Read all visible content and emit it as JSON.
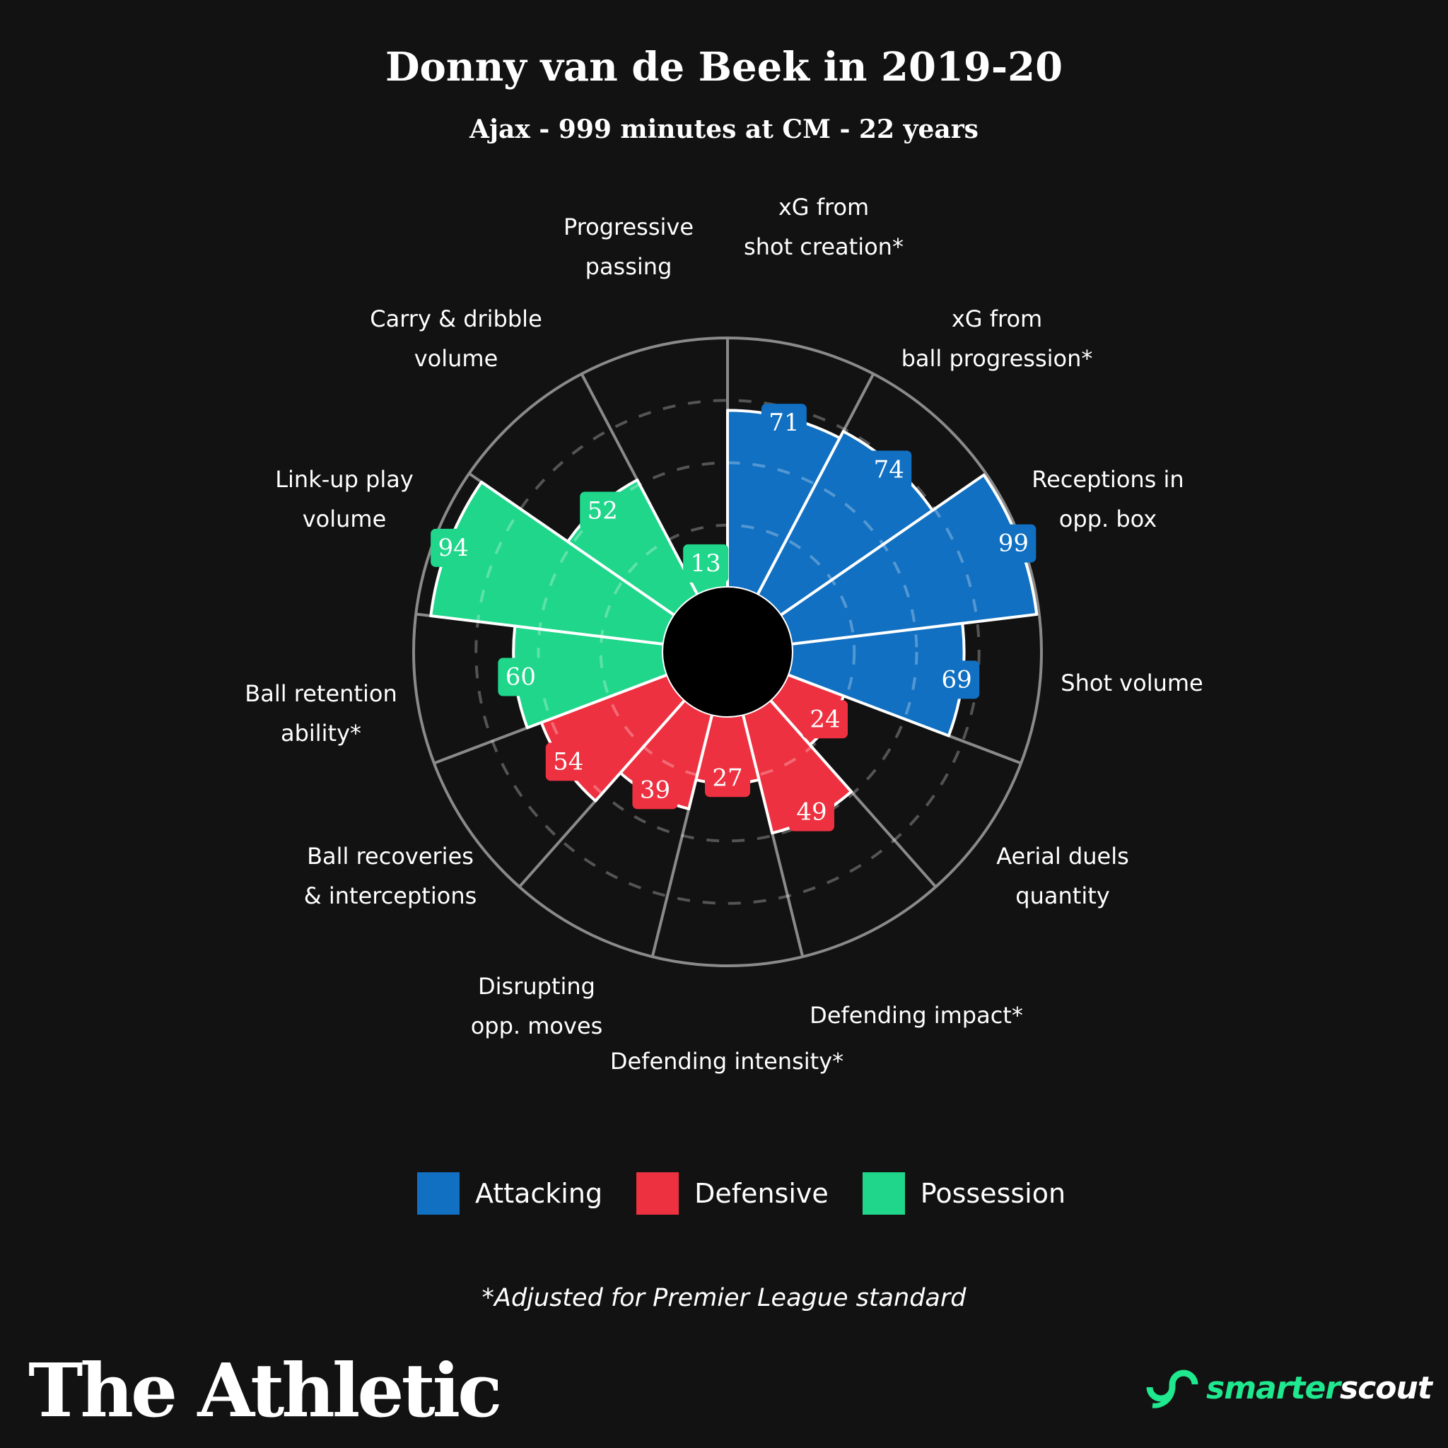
{
  "title": "Donny van de Beek in 2019-20",
  "subtitle": "Ajax - 999 minutes at CM - 22 years",
  "footnote": "*Adjusted for Premier League standard",
  "brand": {
    "publisher": "The Athletic",
    "partner_part1": "smarter",
    "partner_part2": "scout"
  },
  "colors": {
    "background": "#121212",
    "Attacking": "#1170c2",
    "Defensive": "#ee3140",
    "Possession": "#1fd68b"
  },
  "chart_data": {
    "type": "polar-bar",
    "title": "Donny van de Beek in 2019-20",
    "rlim": [
      0,
      100
    ],
    "grid_rings": [
      25,
      50,
      75,
      100
    ],
    "legend": [
      "Attacking",
      "Defensive",
      "Possession"
    ],
    "legend_placement": "bottom",
    "categories": [
      {
        "label": [
          "xG from",
          "shot creation*"
        ],
        "value": 71,
        "group": "Attacking"
      },
      {
        "label": [
          "xG from",
          "ball progression*"
        ],
        "value": 74,
        "group": "Attacking"
      },
      {
        "label": [
          "Receptions in",
          "opp. box"
        ],
        "value": 99,
        "group": "Attacking"
      },
      {
        "label": [
          "Shot volume"
        ],
        "value": 69,
        "group": "Attacking"
      },
      {
        "label": [
          "Aerial duels",
          "quantity"
        ],
        "value": 24,
        "group": "Defensive"
      },
      {
        "label": [
          "Defending impact*"
        ],
        "value": 49,
        "group": "Defensive"
      },
      {
        "label": [
          "Defending intensity*"
        ],
        "value": 27,
        "group": "Defensive"
      },
      {
        "label": [
          "Disrupting",
          "opp. moves"
        ],
        "value": 39,
        "group": "Defensive"
      },
      {
        "label": [
          "Ball recoveries",
          "& interceptions"
        ],
        "value": 54,
        "group": "Defensive"
      },
      {
        "label": [
          "Ball retention",
          "ability*"
        ],
        "value": 60,
        "group": "Possession"
      },
      {
        "label": [
          "Link-up play",
          "volume"
        ],
        "value": 94,
        "group": "Possession"
      },
      {
        "label": [
          "Carry & dribble",
          "volume"
        ],
        "value": 52,
        "group": "Possession"
      },
      {
        "label": [
          "Progressive",
          "passing"
        ],
        "value": 13,
        "group": "Possession"
      }
    ]
  }
}
